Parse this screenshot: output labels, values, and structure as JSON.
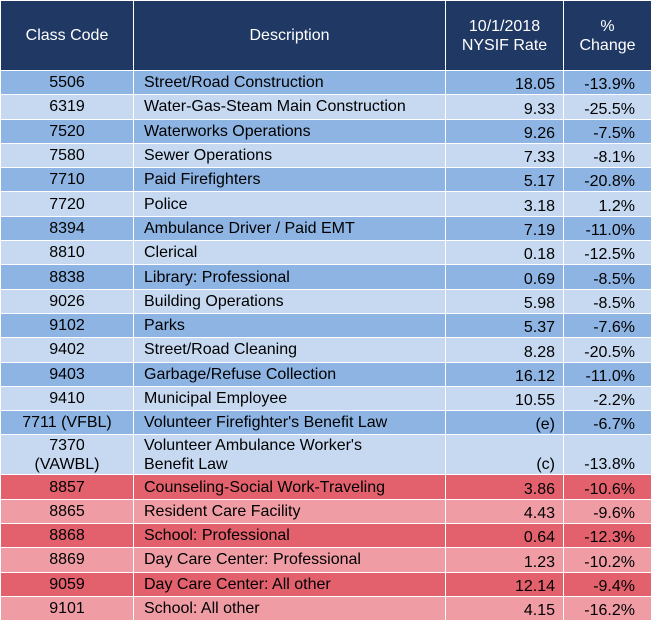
{
  "table": {
    "header": [
      "Class Code",
      "Description",
      "10/1/2018\nNYSIF Rate",
      "%\nChange"
    ],
    "blue_rows": [
      [
        "5506",
        "Street/Road Construction",
        "18.05",
        "-13.9%"
      ],
      [
        "6319",
        "Water-Gas-Steam Main Construction",
        "9.33",
        "-25.5%"
      ],
      [
        "7520",
        "Waterworks Operations",
        "9.26",
        "-7.5%"
      ],
      [
        "7580",
        "Sewer Operations",
        "7.33",
        "-8.1%"
      ],
      [
        "7710",
        "Paid Firefighters",
        "5.17",
        "-20.8%"
      ],
      [
        "7720",
        "Police",
        "3.18",
        "1.2%"
      ],
      [
        "8394",
        "Ambulance Driver / Paid EMT",
        "7.19",
        "-11.0%"
      ],
      [
        "8810",
        "Clerical",
        "0.18",
        "-12.5%"
      ],
      [
        "8838",
        "Library: Professional",
        "0.69",
        "-8.5%"
      ],
      [
        "9026",
        "Building Operations",
        "5.98",
        "-8.5%"
      ],
      [
        "9102",
        "Parks",
        "5.37",
        "-7.6%"
      ],
      [
        "9402",
        "Street/Road Cleaning",
        "8.28",
        "-20.5%"
      ],
      [
        "9403",
        "Garbage/Refuse Collection",
        "16.12",
        "-11.0%"
      ],
      [
        "9410",
        "Municipal Employee",
        "10.55",
        "-2.2%"
      ],
      [
        "7711 (VFBL)",
        "Volunteer Firefighter's Benefit Law",
        "(e)",
        "-6.7%"
      ],
      [
        "7370\n(VAWBL)",
        "Volunteer Ambulance Worker's\nBenefit Law",
        "(c)",
        "-13.8%"
      ]
    ],
    "red_rows": [
      [
        "8857",
        "Counseling-Social Work-Traveling",
        "3.86",
        "-10.6%"
      ],
      [
        "8865",
        "Resident Care Facility",
        "4.43",
        "-9.6%"
      ],
      [
        "8868",
        "School: Professional",
        "0.64",
        "-12.3%"
      ],
      [
        "8869",
        "Day Care Center: Professional",
        "1.23",
        "-10.2%"
      ],
      [
        "9059",
        "Day Care Center: All other",
        "12.14",
        "-9.4%"
      ],
      [
        "9101",
        "School: All other",
        "4.15",
        "-16.2%"
      ]
    ]
  }
}
